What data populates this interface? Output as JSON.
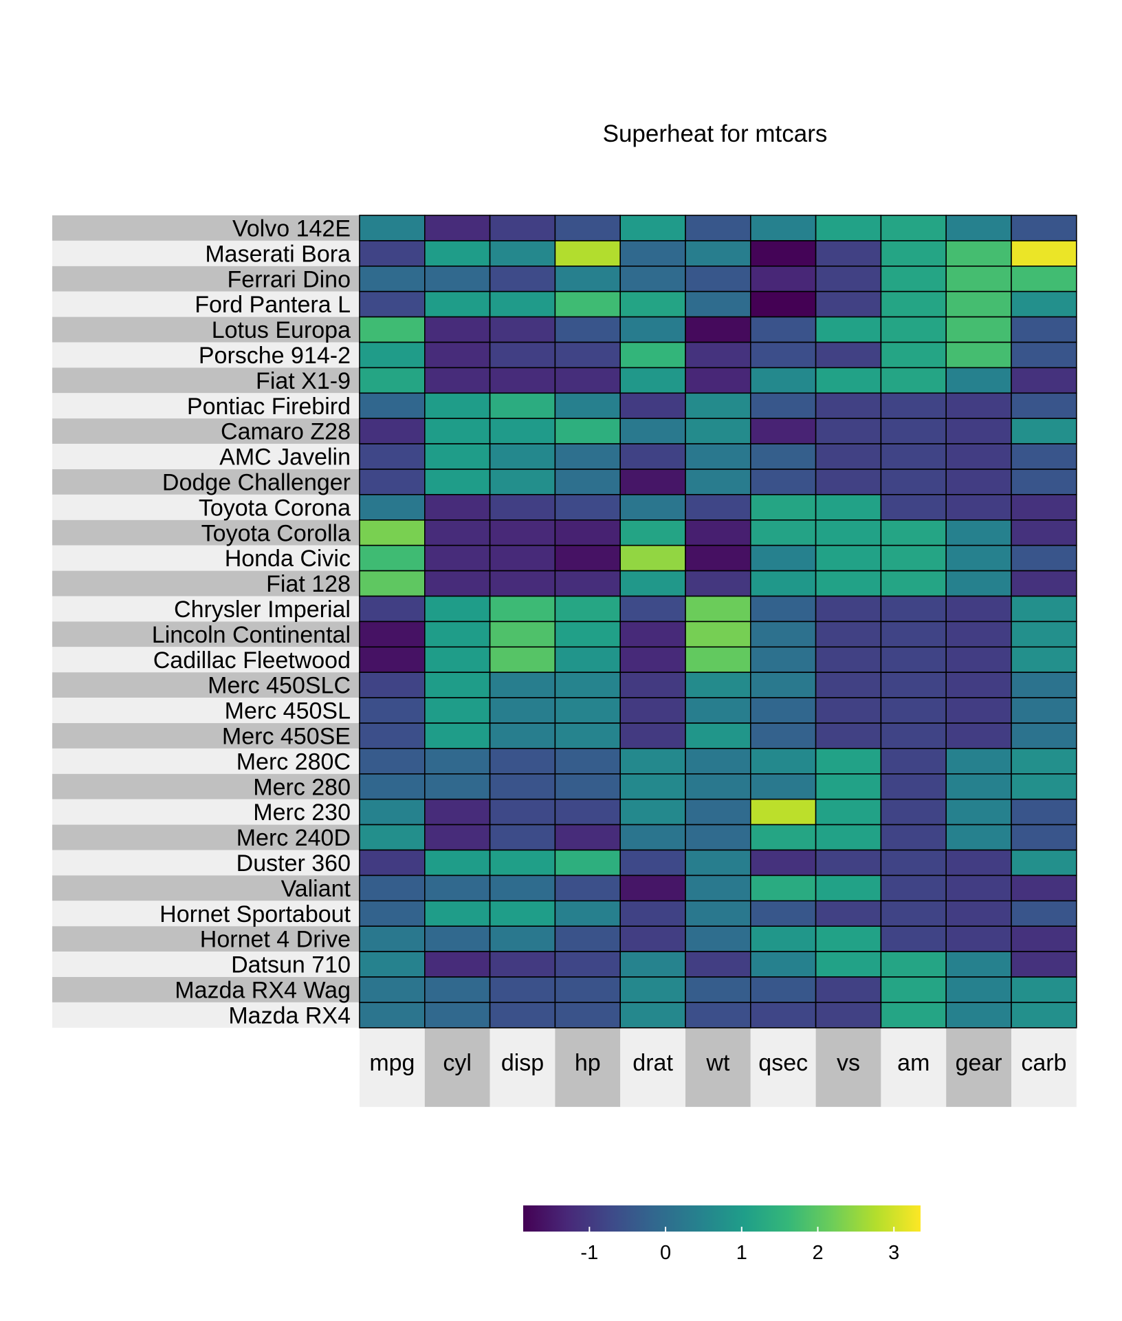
{
  "chart_data": {
    "type": "heatmap",
    "title": "Superheat for mtcars",
    "columns": [
      "mpg",
      "cyl",
      "disp",
      "hp",
      "drat",
      "wt",
      "qsec",
      "vs",
      "am",
      "gear",
      "carb"
    ],
    "rows": [
      {
        "name": "Volvo 142E",
        "values": [
          0.43,
          -1.22,
          -0.89,
          -0.55,
          0.96,
          -0.45,
          0.43,
          1.12,
          1.19,
          0.43,
          -0.5
        ]
      },
      {
        "name": "Maserati Bora",
        "values": [
          -0.81,
          1.01,
          0.57,
          2.75,
          -0.1,
          0.36,
          -1.82,
          -0.87,
          1.19,
          1.78,
          3.21
        ]
      },
      {
        "name": "Ferrari Dino",
        "values": [
          -0.06,
          -0.11,
          -0.69,
          0.41,
          -0.06,
          -0.45,
          -1.31,
          -0.87,
          1.19,
          1.78,
          1.73
        ]
      },
      {
        "name": "Ford Pantera L",
        "values": [
          -0.71,
          1.01,
          0.97,
          1.71,
          1.16,
          -0.05,
          -1.87,
          -0.87,
          1.19,
          1.78,
          0.74
        ]
      },
      {
        "name": "Lotus Europa",
        "values": [
          1.71,
          -1.22,
          -1.09,
          -0.49,
          0.32,
          -1.74,
          -0.53,
          1.12,
          1.19,
          1.78,
          -0.5
        ]
      },
      {
        "name": "Porsche 914-2",
        "values": [
          0.98,
          -1.22,
          -0.89,
          -0.82,
          1.56,
          -1.1,
          -0.64,
          -0.87,
          1.19,
          1.78,
          -0.5
        ]
      },
      {
        "name": "Fiat X1-9",
        "values": [
          1.2,
          -1.22,
          -1.22,
          -1.18,
          0.9,
          -1.31,
          0.59,
          1.12,
          1.19,
          0.43,
          -1.12
        ]
      },
      {
        "name": "Pontiac Firebird",
        "values": [
          -0.15,
          1.01,
          1.36,
          0.41,
          -0.96,
          0.64,
          -0.45,
          -0.87,
          -0.81,
          -0.93,
          -0.5
        ]
      },
      {
        "name": "Camaro Z28",
        "values": [
          -1.13,
          1.01,
          0.97,
          1.43,
          0.25,
          0.64,
          -1.36,
          -0.87,
          -0.81,
          -0.93,
          0.74
        ]
      },
      {
        "name": "AMC Javelin",
        "values": [
          -0.76,
          1.01,
          0.58,
          0.05,
          -0.84,
          0.22,
          -0.31,
          -0.87,
          -0.81,
          -0.93,
          -0.5
        ]
      },
      {
        "name": "Dodge Challenger",
        "values": [
          -0.76,
          1.01,
          0.71,
          0.05,
          -1.56,
          0.31,
          -0.55,
          -0.87,
          -0.81,
          -0.93,
          -0.5
        ]
      },
      {
        "name": "Toyota Corona",
        "values": [
          0.23,
          -1.22,
          -0.89,
          -0.71,
          0.19,
          -0.77,
          1.2,
          1.12,
          -0.81,
          -0.93,
          -1.12
        ]
      },
      {
        "name": "Toyota Corolla",
        "values": [
          2.29,
          -1.22,
          -1.28,
          -1.38,
          1.17,
          -1.42,
          1.15,
          1.12,
          1.19,
          0.43,
          -1.12
        ]
      },
      {
        "name": "Honda Civic",
        "values": [
          1.71,
          -1.22,
          -1.25,
          -1.62,
          2.49,
          -1.64,
          0.43,
          1.12,
          1.19,
          0.43,
          -0.5
        ]
      },
      {
        "name": "Fiat 128",
        "values": [
          2.04,
          -1.22,
          -1.23,
          -1.19,
          0.9,
          -1.04,
          0.91,
          1.12,
          1.19,
          0.43,
          -1.12
        ]
      },
      {
        "name": "Chrysler Imperial",
        "values": [
          -0.89,
          1.01,
          1.69,
          1.21,
          -0.69,
          2.17,
          -0.24,
          -0.87,
          -0.81,
          -0.93,
          0.74
        ]
      },
      {
        "name": "Lincoln Continental",
        "values": [
          -1.61,
          1.01,
          1.88,
          1.07,
          -1.25,
          2.26,
          0.08,
          -0.87,
          -0.81,
          -0.93,
          0.74
        ]
      },
      {
        "name": "Cadillac Fleetwood",
        "values": [
          -1.61,
          1.01,
          1.95,
          0.85,
          -1.25,
          2.08,
          0.07,
          -0.87,
          -0.81,
          -0.93,
          0.74
        ]
      },
      {
        "name": "Merc 450SLC",
        "values": [
          -0.81,
          1.01,
          0.36,
          0.49,
          -0.98,
          0.64,
          0.25,
          -0.87,
          -0.81,
          -0.93,
          0.12
        ]
      },
      {
        "name": "Merc 450SL",
        "values": [
          -0.61,
          1.01,
          0.36,
          0.49,
          -0.98,
          0.36,
          -0.14,
          -0.87,
          -0.81,
          -0.93,
          0.12
        ]
      },
      {
        "name": "Merc 450SE",
        "values": [
          -0.61,
          1.01,
          0.36,
          0.49,
          -0.98,
          0.87,
          -0.25,
          -0.87,
          -0.81,
          -0.93,
          0.12
        ]
      },
      {
        "name": "Merc 280C",
        "values": [
          -0.38,
          -0.11,
          -0.51,
          -0.35,
          0.6,
          0.23,
          0.59,
          1.12,
          -0.81,
          0.43,
          0.74
        ]
      },
      {
        "name": "Merc 280",
        "values": [
          -0.15,
          -0.11,
          -0.51,
          -0.35,
          0.6,
          0.23,
          0.25,
          1.12,
          -0.81,
          0.43,
          0.74
        ]
      },
      {
        "name": "Merc 230",
        "values": [
          0.45,
          -1.22,
          -0.73,
          -0.75,
          0.6,
          -0.07,
          2.83,
          1.12,
          -0.81,
          0.43,
          -0.5
        ]
      },
      {
        "name": "Merc 240D",
        "values": [
          0.72,
          -1.22,
          -0.68,
          -1.22,
          0.17,
          -0.07,
          1.2,
          1.12,
          -0.81,
          0.43,
          -0.5
        ]
      },
      {
        "name": "Duster 360",
        "values": [
          -0.96,
          1.01,
          1.06,
          1.43,
          -0.72,
          0.36,
          -1.12,
          -0.87,
          -0.81,
          -0.93,
          0.74
        ]
      },
      {
        "name": "Valiant",
        "values": [
          -0.33,
          -0.11,
          -0.05,
          -0.6,
          -1.56,
          0.25,
          1.33,
          1.12,
          -0.81,
          -0.93,
          -1.12
        ]
      },
      {
        "name": "Hornet Sportabout",
        "values": [
          -0.23,
          1.01,
          1.04,
          0.41,
          -0.84,
          0.23,
          -0.46,
          -0.87,
          -0.81,
          -0.93,
          -0.5
        ]
      },
      {
        "name": "Hornet 4 Drive",
        "values": [
          0.22,
          -0.11,
          0.22,
          -0.54,
          -0.92,
          -0.0,
          0.89,
          1.12,
          -0.81,
          -0.93,
          -1.12
        ]
      },
      {
        "name": "Datsun 710",
        "values": [
          0.45,
          -1.22,
          -0.99,
          -0.78,
          0.47,
          -0.92,
          0.43,
          1.12,
          1.19,
          0.43,
          -1.12
        ]
      },
      {
        "name": "Mazda RX4 Wag",
        "values": [
          0.15,
          -0.11,
          -0.57,
          -0.54,
          0.57,
          -0.35,
          -0.46,
          -0.87,
          1.19,
          0.43,
          0.74
        ]
      },
      {
        "name": "Mazda RX4",
        "values": [
          0.15,
          -0.11,
          -0.57,
          -0.54,
          0.57,
          -0.61,
          -0.78,
          -0.87,
          1.19,
          0.43,
          0.74
        ]
      }
    ],
    "color_scale": {
      "name": "viridis",
      "range": [
        -1.87,
        3.35
      ],
      "ticks": [
        -1,
        0,
        1,
        2,
        3
      ],
      "stops": [
        "#440154",
        "#482878",
        "#3E4A89",
        "#31688E",
        "#26828E",
        "#1F9E89",
        "#35B779",
        "#6DCD59",
        "#B4DE2C",
        "#FDE725"
      ]
    },
    "row_band_colors": [
      "#C0C0C0",
      "#EFEFEF"
    ],
    "legend_position": "bottom"
  }
}
